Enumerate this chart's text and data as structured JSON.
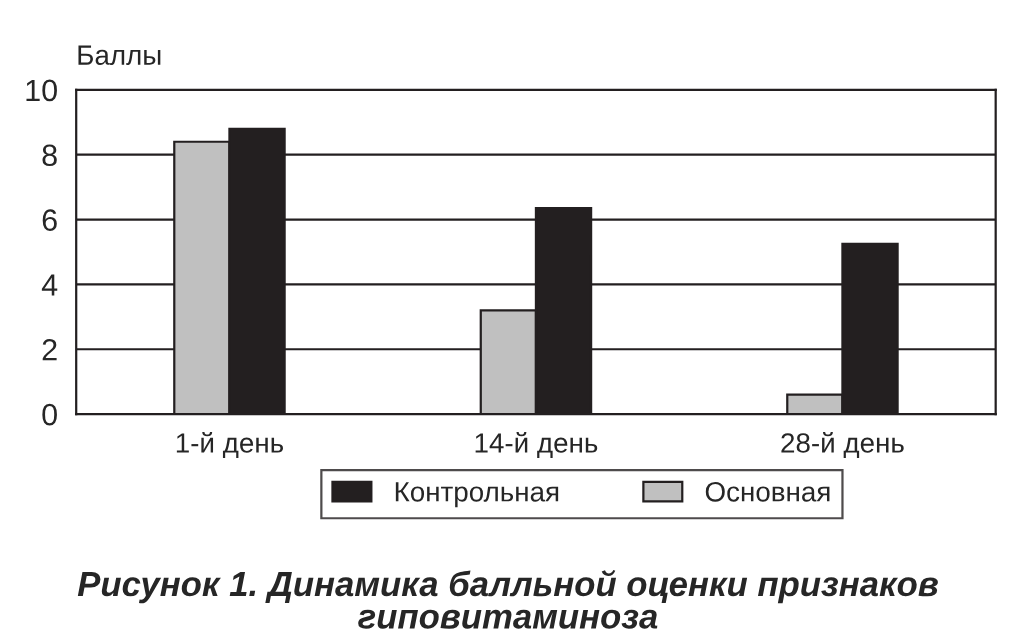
{
  "chart_data": {
    "type": "bar",
    "title": "Рисунок 1. Динамика балльной оценки признаков\nгиповитаминоза",
    "ylabel": "Баллы",
    "categories": [
      "1-й день",
      "14-й день",
      "28-й день"
    ],
    "series": [
      {
        "name": "Основная",
        "color": "#c0c0c0",
        "values": [
          8.4,
          3.2,
          0.6
        ]
      },
      {
        "name": "Контрольная",
        "color": "#231f20",
        "values": [
          8.8,
          6.35,
          5.25
        ]
      }
    ],
    "ylim": [
      0,
      10
    ],
    "yticks": [
      0,
      2,
      4,
      6,
      8,
      10
    ],
    "grid": "y",
    "legend": "bottom"
  }
}
